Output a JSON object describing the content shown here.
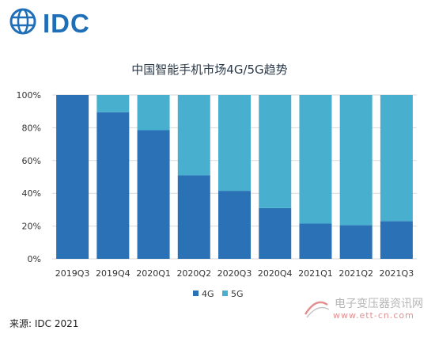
{
  "brand": {
    "logo_text": "IDC",
    "logo_color": "#1f6fb8"
  },
  "chart_data": {
    "type": "bar",
    "stacked": true,
    "title": "中国智能手机市场4G/5G趋势",
    "xlabel": "",
    "ylabel": "",
    "categories": [
      "2019Q3",
      "2019Q4",
      "2020Q1",
      "2020Q2",
      "2020Q3",
      "2020Q4",
      "2021Q1",
      "2021Q2",
      "2021Q3"
    ],
    "series": [
      {
        "name": "4G",
        "color": "#2a72b5",
        "values": [
          100,
          89.5,
          78.5,
          51,
          41.5,
          31,
          21.5,
          20.5,
          23
        ]
      },
      {
        "name": "5G",
        "color": "#48b0ce",
        "values": [
          0,
          10.5,
          21.5,
          49,
          58.5,
          69,
          78.5,
          79.5,
          77
        ]
      }
    ],
    "ylim": [
      0,
      100
    ],
    "yticks": [
      0,
      20,
      40,
      60,
      80,
      100
    ],
    "ytick_labels": [
      "0%",
      "20%",
      "40%",
      "60%",
      "80%",
      "100%"
    ],
    "grid": true,
    "legend_position": "bottom"
  },
  "source": "来源: IDC 2021",
  "watermark": {
    "line1": "电子变压器资讯网",
    "line2": "www.ett-cn.com"
  }
}
